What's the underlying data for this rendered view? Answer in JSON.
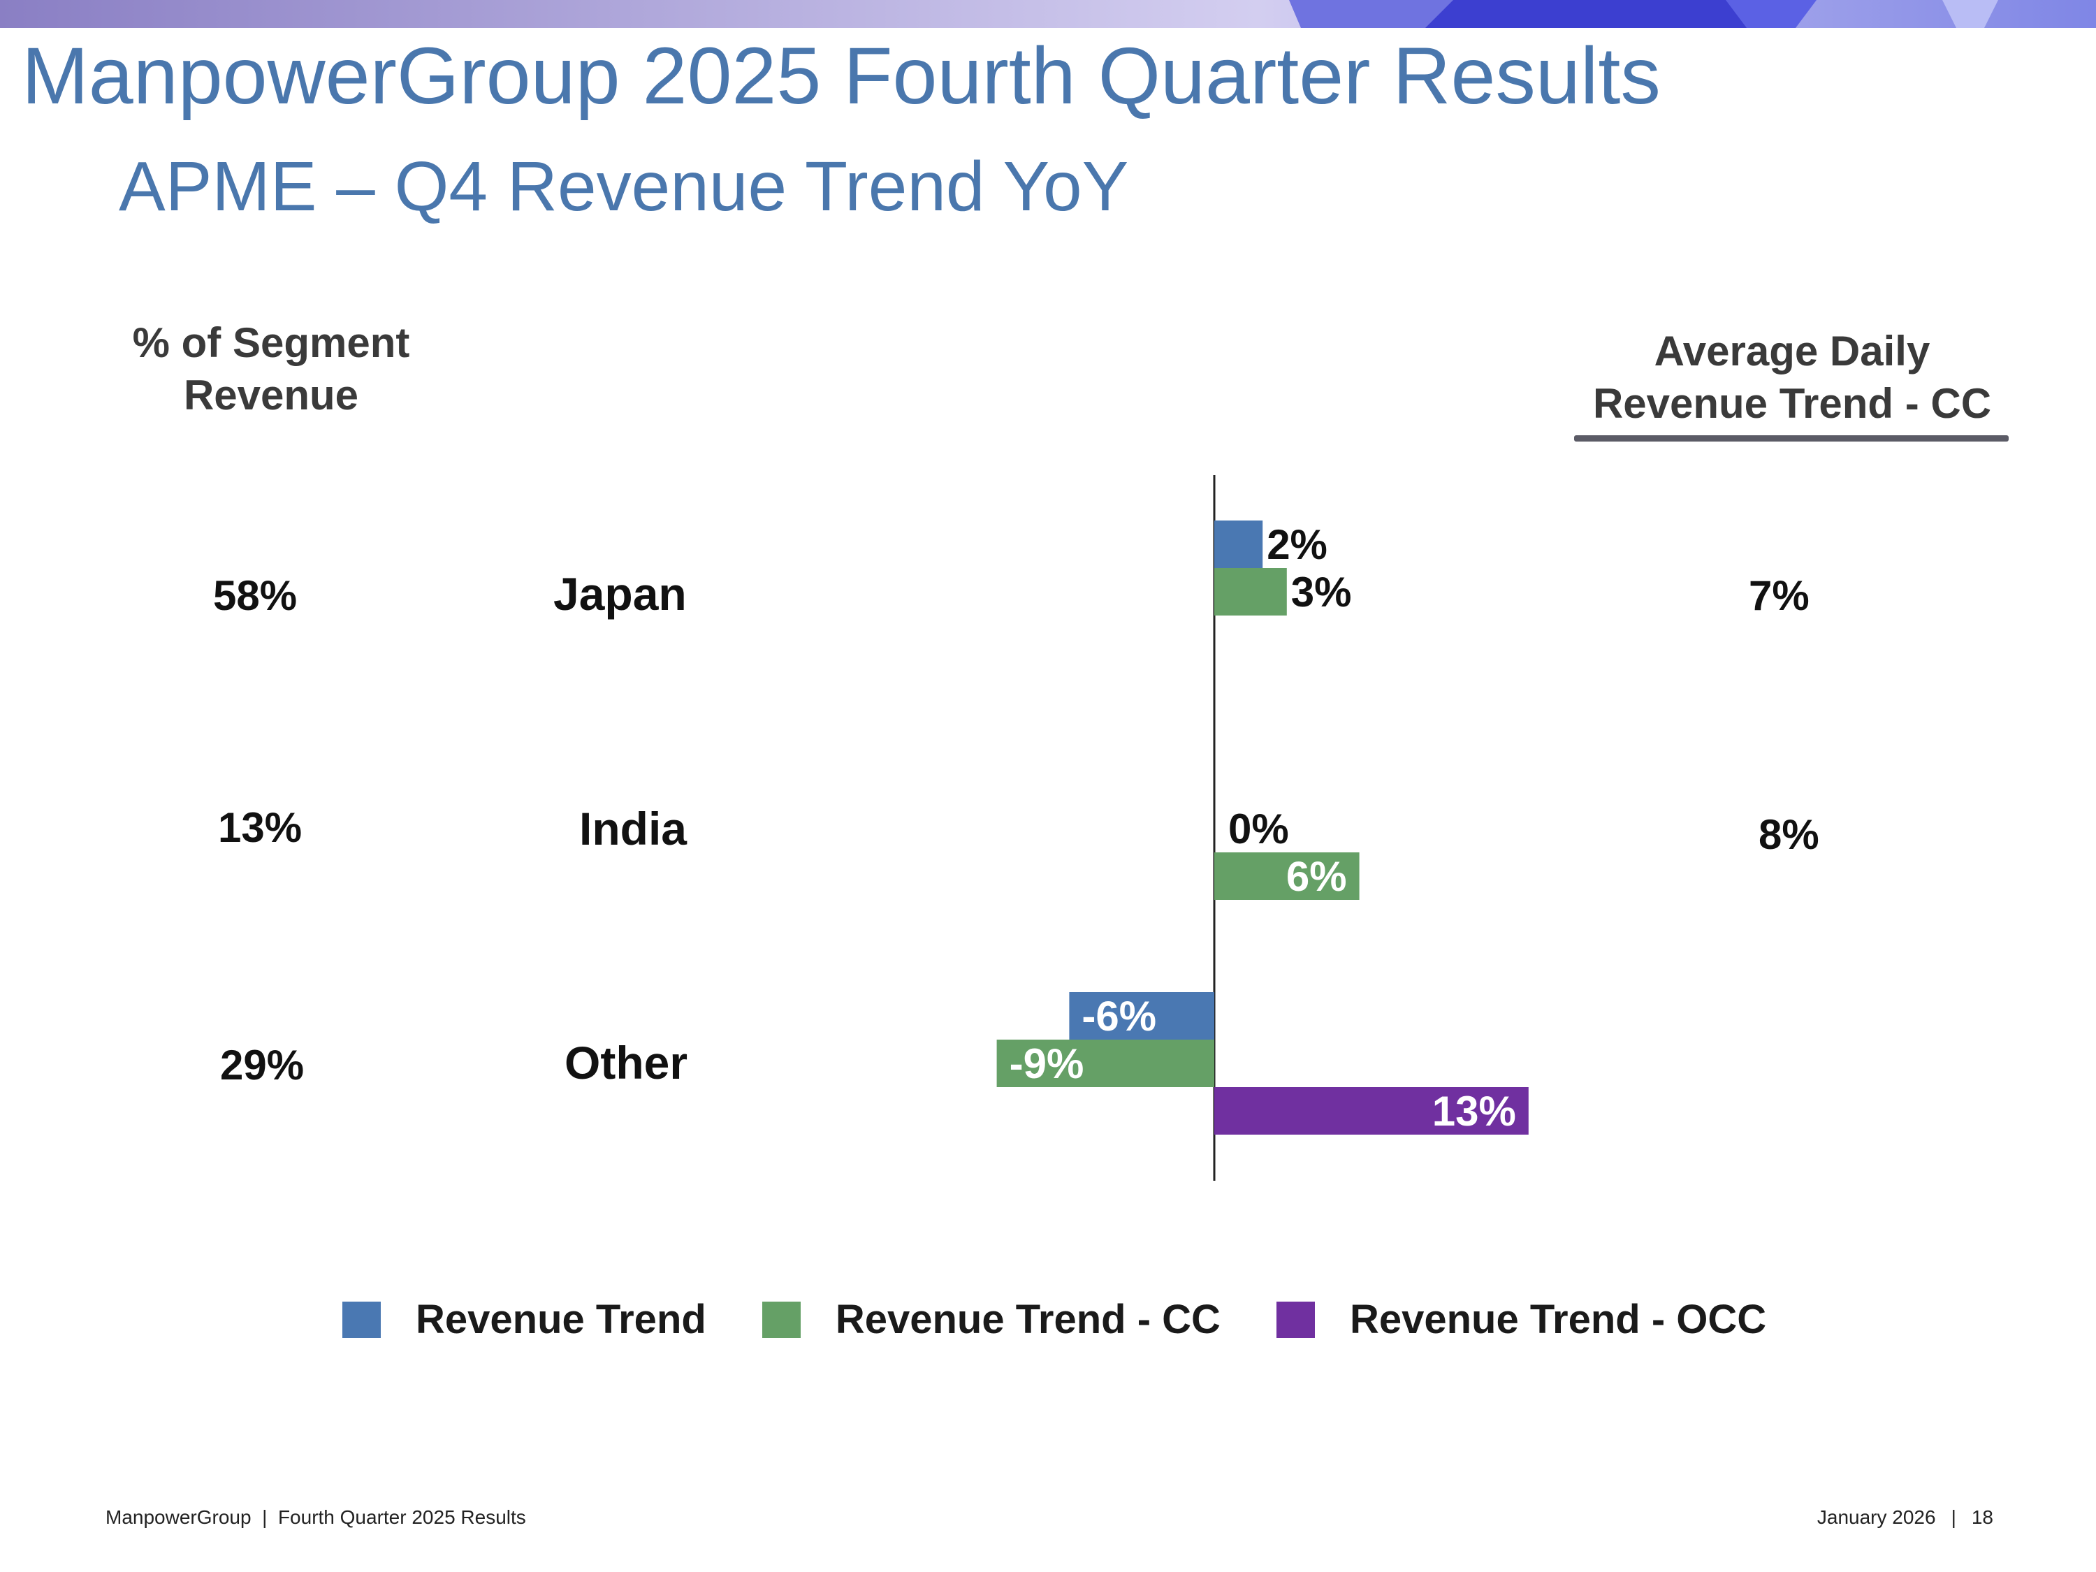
{
  "header": {
    "title": "ManpowerGroup 2025 Fourth Quarter Results",
    "subtitle": "APME – Q4 Revenue Trend YoY"
  },
  "columns": {
    "segment_header_line1": "% of Segment",
    "segment_header_line2": "Revenue",
    "adr_header_line1": "Average Daily",
    "adr_header_line2": "Revenue Trend - CC"
  },
  "rows": [
    {
      "region": "Japan",
      "segment_pct": "58%",
      "adr_cc": "7%"
    },
    {
      "region": "India",
      "segment_pct": "13%",
      "adr_cc": "8%"
    },
    {
      "region": "Other",
      "segment_pct": "29%",
      "adr_cc": ""
    }
  ],
  "chart_data": {
    "type": "bar",
    "orientation": "horizontal",
    "categories": [
      "Japan",
      "India",
      "Other"
    ],
    "series": [
      {
        "name": "Revenue Trend",
        "color": "#4a78b2",
        "values": [
          2,
          0,
          -6
        ],
        "labels": [
          "2%",
          "0%",
          "-6%"
        ]
      },
      {
        "name": "Revenue Trend - CC",
        "color": "#65a066",
        "values": [
          3,
          6,
          -9
        ],
        "labels": [
          "3%",
          "6%",
          "-9%"
        ]
      },
      {
        "name": "Revenue Trend - OCC",
        "color": "#7030a0",
        "values": [
          null,
          null,
          13
        ],
        "labels": [
          "",
          "",
          "13%"
        ]
      }
    ],
    "xlabel": "",
    "ylabel": "",
    "unit": "%",
    "grid": false,
    "legend_position": "bottom"
  },
  "legend": [
    {
      "label": "Revenue Trend",
      "color": "#4a78b2"
    },
    {
      "label": "Revenue Trend - CC",
      "color": "#65a066"
    },
    {
      "label": "Revenue Trend - OCC",
      "color": "#7030a0"
    }
  ],
  "footer": {
    "left": "ManpowerGroup  |  Fourth Quarter 2025 Results",
    "date": "January 2026",
    "separator": "|",
    "page": "18"
  }
}
